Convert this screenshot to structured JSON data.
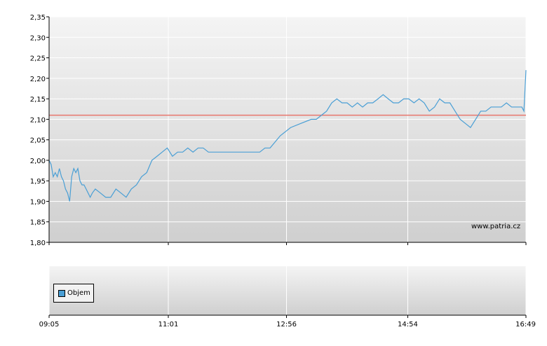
{
  "chart_data": [
    {
      "type": "line",
      "title": "",
      "xlabel": "",
      "ylabel": "",
      "ylim": [
        1.8,
        2.35
      ],
      "xlim": [
        "09:05",
        "16:49"
      ],
      "grid": true,
      "y_ticks": [
        "2,35",
        "2,30",
        "2,25",
        "2,20",
        "2,15",
        "2,10",
        "2,05",
        "2,00",
        "1,95",
        "1,90",
        "1,85",
        "1,80"
      ],
      "reference_line": {
        "value": 2.11,
        "color": "#e8756c"
      },
      "line_color": "#4a9fd5",
      "series": [
        {
          "name": "",
          "x": [
            "09:05",
            "09:07",
            "09:09",
            "09:11",
            "09:13",
            "09:15",
            "09:17",
            "09:19",
            "09:21",
            "09:23",
            "09:25",
            "09:27",
            "09:29",
            "09:31",
            "09:33",
            "09:35",
            "09:37",
            "09:39",
            "09:41",
            "09:43",
            "09:45",
            "09:47",
            "09:50",
            "09:55",
            "10:00",
            "10:05",
            "10:10",
            "10:15",
            "10:20",
            "10:25",
            "10:30",
            "10:35",
            "10:40",
            "10:45",
            "10:50",
            "10:55",
            "11:00",
            "11:05",
            "11:10",
            "11:15",
            "11:20",
            "11:25",
            "11:30",
            "11:35",
            "11:40",
            "11:45",
            "11:50",
            "11:55",
            "12:00",
            "12:05",
            "12:10",
            "12:15",
            "12:20",
            "12:25",
            "12:30",
            "12:35",
            "12:40",
            "12:50",
            "13:00",
            "13:10",
            "13:20",
            "13:25",
            "13:30",
            "13:35",
            "13:40",
            "13:45",
            "13:50",
            "13:55",
            "14:00",
            "14:05",
            "14:10",
            "14:15",
            "14:20",
            "14:25",
            "14:30",
            "14:35",
            "14:40",
            "14:45",
            "14:50",
            "14:55",
            "15:00",
            "15:05",
            "15:10",
            "15:15",
            "15:20",
            "15:25",
            "15:30",
            "15:35",
            "15:40",
            "15:45",
            "15:50",
            "15:55",
            "16:00",
            "16:05",
            "16:10",
            "16:15",
            "16:20",
            "16:25",
            "16:30",
            "16:35",
            "16:40",
            "16:45",
            "16:47",
            "16:49"
          ],
          "values": [
            2.0,
            1.99,
            1.96,
            1.97,
            1.96,
            1.98,
            1.96,
            1.95,
            1.93,
            1.92,
            1.9,
            1.96,
            1.98,
            1.97,
            1.98,
            1.95,
            1.94,
            1.94,
            1.93,
            1.92,
            1.91,
            1.92,
            1.93,
            1.92,
            1.91,
            1.91,
            1.93,
            1.92,
            1.91,
            1.93,
            1.94,
            1.96,
            1.97,
            2.0,
            2.01,
            2.02,
            2.03,
            2.01,
            2.02,
            2.02,
            2.03,
            2.02,
            2.03,
            2.03,
            2.02,
            2.02,
            2.02,
            2.02,
            2.02,
            2.02,
            2.02,
            2.02,
            2.02,
            2.02,
            2.02,
            2.03,
            2.03,
            2.06,
            2.08,
            2.09,
            2.1,
            2.1,
            2.11,
            2.12,
            2.14,
            2.15,
            2.14,
            2.14,
            2.13,
            2.14,
            2.13,
            2.14,
            2.14,
            2.15,
            2.16,
            2.15,
            2.14,
            2.14,
            2.15,
            2.15,
            2.14,
            2.15,
            2.14,
            2.12,
            2.13,
            2.15,
            2.14,
            2.14,
            2.12,
            2.1,
            2.09,
            2.08,
            2.1,
            2.12,
            2.12,
            2.13,
            2.13,
            2.13,
            2.14,
            2.13,
            2.13,
            2.13,
            2.12,
            2.22
          ]
        }
      ]
    },
    {
      "type": "bar",
      "title": "",
      "legend": {
        "label": "Objem",
        "placement": "bottom-left"
      },
      "series": [
        {
          "name": "Objem",
          "values": []
        }
      ]
    }
  ],
  "x_axis_labels": [
    "09:05",
    "11:01",
    "12:56",
    "14:54",
    "16:49"
  ],
  "watermark": "www.patria.cz"
}
